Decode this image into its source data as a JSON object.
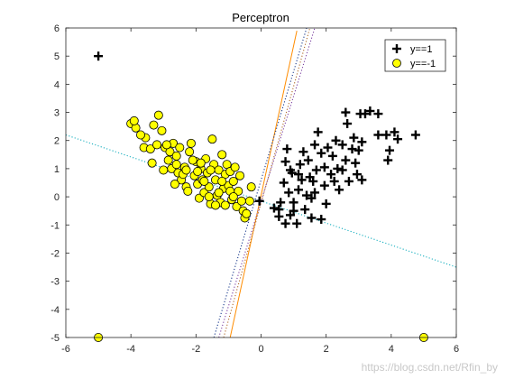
{
  "chart_data": {
    "type": "scatter",
    "title": "Perceptron",
    "xlabel": "",
    "ylabel": "",
    "xlim": [
      -6,
      6
    ],
    "ylim": [
      -5,
      6
    ],
    "xticks": [
      "-6",
      "-4",
      "-2",
      "0",
      "2",
      "4",
      "6"
    ],
    "yticks": [
      "-5",
      "-4",
      "-3",
      "-2",
      "-1",
      "0",
      "1",
      "2",
      "3",
      "4",
      "5",
      "6"
    ],
    "grid": false,
    "legend": {
      "placement": "top-right",
      "entries": [
        "y==1",
        "y==-1"
      ]
    },
    "series": [
      {
        "name": "y==1",
        "marker": "plus",
        "color": "#000000",
        "points": [
          [
            -5.0,
            5.0
          ],
          [
            -0.05,
            -0.15
          ],
          [
            0.4,
            -0.4
          ],
          [
            0.55,
            -0.7
          ],
          [
            0.75,
            -0.95
          ],
          [
            0.9,
            -0.65
          ],
          [
            0.6,
            -0.2
          ],
          [
            0.85,
            0.15
          ],
          [
            0.7,
            0.5
          ],
          [
            0.95,
            0.85
          ],
          [
            0.75,
            1.25
          ],
          [
            0.8,
            1.7
          ],
          [
            1.1,
            -0.95
          ],
          [
            1.0,
            -0.2
          ],
          [
            1.15,
            0.25
          ],
          [
            1.25,
            0.6
          ],
          [
            1.2,
            1.15
          ],
          [
            1.35,
            -0.45
          ],
          [
            1.55,
            -0.05
          ],
          [
            1.5,
            0.7
          ],
          [
            1.45,
            1.3
          ],
          [
            1.65,
            0.15
          ],
          [
            1.7,
            0.95
          ],
          [
            1.65,
            1.85
          ],
          [
            1.75,
            2.3
          ],
          [
            1.85,
            1.55
          ],
          [
            1.95,
            0.4
          ],
          [
            2.0,
            -0.25
          ],
          [
            1.55,
            -0.75
          ],
          [
            1.85,
            -0.8
          ],
          [
            2.15,
            0.8
          ],
          [
            2.2,
            1.45
          ],
          [
            2.35,
            1.0
          ],
          [
            2.4,
            0.25
          ],
          [
            2.3,
            2.0
          ],
          [
            2.5,
            1.85
          ],
          [
            2.6,
            1.3
          ],
          [
            2.7,
            0.55
          ],
          [
            2.65,
            2.6
          ],
          [
            2.6,
            3.0
          ],
          [
            2.85,
            2.1
          ],
          [
            2.9,
            1.2
          ],
          [
            2.95,
            0.8
          ],
          [
            3.0,
            1.65
          ],
          [
            3.05,
            2.95
          ],
          [
            3.1,
            0.6
          ],
          [
            3.2,
            2.95
          ],
          [
            3.35,
            3.05
          ],
          [
            3.1,
            1.95
          ],
          [
            2.8,
            1.7
          ],
          [
            3.6,
            2.2
          ],
          [
            3.85,
            2.2
          ],
          [
            3.9,
            1.3
          ],
          [
            3.95,
            1.65
          ],
          [
            4.1,
            2.3
          ],
          [
            4.2,
            2.05
          ],
          [
            4.75,
            2.2
          ],
          [
            1.95,
            1.05
          ],
          [
            1.0,
            -0.5
          ],
          [
            2.25,
            0.55
          ],
          [
            1.4,
            0.05
          ],
          [
            0.9,
            0.95
          ],
          [
            1.15,
            0.8
          ],
          [
            2.05,
            1.75
          ],
          [
            2.5,
            0.95
          ],
          [
            1.6,
            0.55
          ],
          [
            3.6,
            2.95
          ],
          [
            1.3,
            1.6
          ],
          [
            0.55,
            -0.45
          ]
        ]
      },
      {
        "name": "y==-1",
        "marker": "circle",
        "color": "#FFFF00",
        "points": [
          [
            -5.0,
            -5.0
          ],
          [
            5.0,
            -5.0
          ],
          [
            -4.0,
            2.6
          ],
          [
            -3.85,
            2.45
          ],
          [
            -3.9,
            2.7
          ],
          [
            -3.55,
            2.1
          ],
          [
            -3.6,
            1.75
          ],
          [
            -3.4,
            1.7
          ],
          [
            -3.2,
            1.85
          ],
          [
            -3.3,
            2.55
          ],
          [
            -3.15,
            2.9
          ],
          [
            -3.05,
            2.35
          ],
          [
            -2.95,
            1.75
          ],
          [
            -2.85,
            1.3
          ],
          [
            -2.75,
            1.0
          ],
          [
            -2.8,
            1.6
          ],
          [
            -2.7,
            1.9
          ],
          [
            -2.6,
            1.45
          ],
          [
            -2.55,
            0.85
          ],
          [
            -2.45,
            0.6
          ],
          [
            -2.35,
            1.05
          ],
          [
            -2.3,
            0.35
          ],
          [
            -2.25,
            0.2
          ],
          [
            -2.15,
            1.9
          ],
          [
            -2.05,
            0.75
          ],
          [
            -2.0,
            1.25
          ],
          [
            -1.95,
            0.45
          ],
          [
            -1.9,
            -0.05
          ],
          [
            -1.85,
            1.0
          ],
          [
            -1.8,
            0.6
          ],
          [
            -1.75,
            0.15
          ],
          [
            -1.7,
            1.35
          ],
          [
            -1.65,
            0.85
          ],
          [
            -1.6,
            0.35
          ],
          [
            -1.55,
            -0.25
          ],
          [
            -1.5,
            2.05
          ],
          [
            -1.45,
            1.15
          ],
          [
            -1.4,
            0.6
          ],
          [
            -1.35,
            0.05
          ],
          [
            -1.3,
            0.95
          ],
          [
            -1.25,
            -0.2
          ],
          [
            -1.2,
            1.5
          ],
          [
            -1.15,
            0.3
          ],
          [
            -1.1,
            0.8
          ],
          [
            -1.05,
            1.15
          ],
          [
            -1.0,
            0.4
          ],
          [
            -0.95,
            0.9
          ],
          [
            -0.9,
            -0.1
          ],
          [
            -0.85,
            0.55
          ],
          [
            -0.8,
            1.05
          ],
          [
            -0.75,
            -0.35
          ],
          [
            -0.7,
            0.2
          ],
          [
            -0.65,
            0.75
          ],
          [
            -0.6,
            -0.15
          ],
          [
            -0.55,
            -0.5
          ],
          [
            -0.5,
            -0.75
          ],
          [
            -0.45,
            -0.6
          ],
          [
            -0.35,
            -0.15
          ],
          [
            -0.3,
            0.35
          ],
          [
            -2.9,
            1.85
          ],
          [
            -2.6,
            1.15
          ],
          [
            -2.4,
            0.8
          ],
          [
            -2.2,
            1.6
          ],
          [
            -1.95,
            0.9
          ],
          [
            -1.75,
            0.55
          ],
          [
            -1.55,
            0.95
          ],
          [
            -1.3,
            0.15
          ],
          [
            -1.1,
            -0.3
          ],
          [
            -0.95,
            0.2
          ],
          [
            -2.1,
            1.3
          ],
          [
            -1.85,
            1.2
          ],
          [
            -2.5,
            1.75
          ],
          [
            -3.35,
            1.2
          ],
          [
            -3.0,
            0.95
          ],
          [
            -1.6,
            0.0
          ],
          [
            -1.4,
            -0.3
          ],
          [
            -2.65,
            0.45
          ],
          [
            -2.3,
            0.95
          ],
          [
            -1.2,
            0.55
          ],
          [
            -0.85,
            0.0
          ],
          [
            -3.7,
            2.2
          ]
        ]
      }
    ],
    "lines": [
      {
        "style": "dotted",
        "color": "#1BB0C0",
        "x": [
          -6,
          6
        ],
        "y": [
          2.2,
          -2.5
        ]
      },
      {
        "style": "solid",
        "color": "#FF8C00",
        "x": [
          -0.95,
          1.1
        ],
        "y": [
          -5,
          5.9
        ]
      },
      {
        "style": "dotted",
        "color": "#1A3A8C",
        "x": [
          -1.45,
          1.4
        ],
        "y": [
          -5,
          6
        ]
      },
      {
        "style": "dotted",
        "color": "#B06A2A",
        "x": [
          -1.15,
          1.5
        ],
        "y": [
          -5,
          6
        ]
      },
      {
        "style": "dotted",
        "color": "#7A3FA0",
        "x": [
          -1.3,
          1.65
        ],
        "y": [
          -5,
          6
        ]
      }
    ]
  },
  "watermark": "https://blog.csdn.net/Rfin_by"
}
